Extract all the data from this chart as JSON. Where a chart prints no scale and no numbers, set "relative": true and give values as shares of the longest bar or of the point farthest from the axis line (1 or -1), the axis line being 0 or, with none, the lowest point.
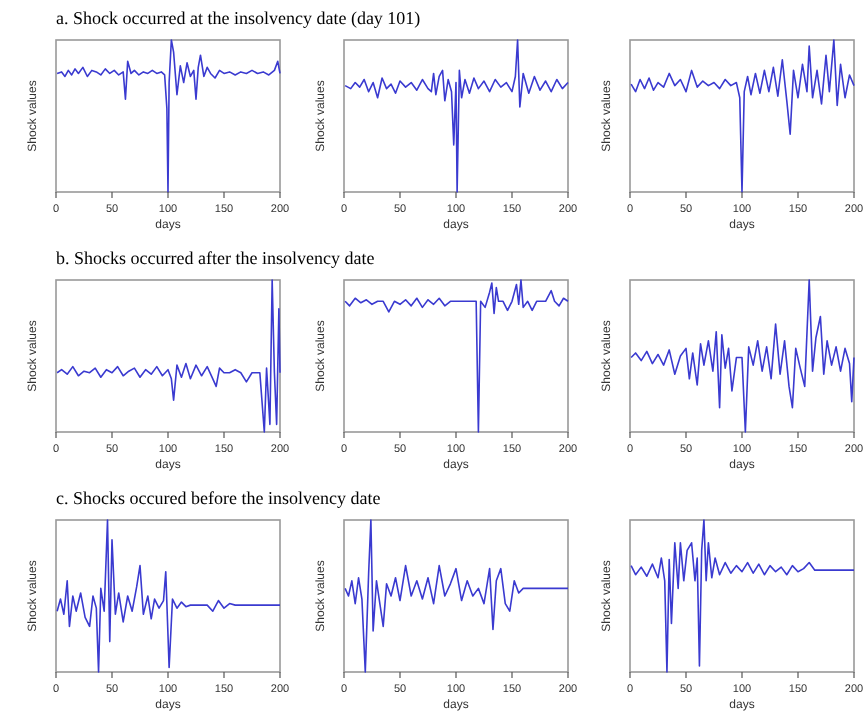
{
  "chart_data": [
    {
      "type": "line",
      "title": "a. Shock occurred at the insolvency date (day 101)",
      "xlabel": "days",
      "ylabel": "Shock values",
      "color": "#3a3ad0",
      "relative": true,
      "xlim": [
        0,
        200
      ],
      "xticks": [
        0,
        50,
        100,
        150,
        200
      ],
      "x": [
        1,
        5,
        8,
        11,
        14,
        17,
        20,
        24,
        28,
        32,
        36,
        40,
        44,
        48,
        52,
        56,
        60,
        62,
        64,
        67,
        70,
        74,
        78,
        82,
        86,
        90,
        94,
        97,
        99,
        100,
        101,
        103,
        105,
        108,
        111,
        114,
        117,
        120,
        123,
        125,
        127,
        129,
        132,
        135,
        138,
        142,
        146,
        150,
        155,
        160,
        165,
        170,
        175,
        180,
        185,
        190,
        195,
        198,
        200
      ],
      "values": [
        0.78,
        0.79,
        0.76,
        0.8,
        0.77,
        0.81,
        0.78,
        0.82,
        0.76,
        0.8,
        0.79,
        0.77,
        0.81,
        0.78,
        0.8,
        0.77,
        0.79,
        0.61,
        0.86,
        0.78,
        0.8,
        0.77,
        0.79,
        0.78,
        0.8,
        0.78,
        0.79,
        0.77,
        0.55,
        0,
        0.72,
        1,
        0.92,
        0.64,
        0.83,
        0.72,
        0.85,
        0.76,
        0.8,
        0.61,
        0.82,
        0.9,
        0.76,
        0.82,
        0.78,
        0.75,
        0.8,
        0.78,
        0.79,
        0.77,
        0.79,
        0.78,
        0.8,
        0.78,
        0.79,
        0.77,
        0.8,
        0.86,
        0.78
      ]
    },
    {
      "type": "line",
      "xlabel": "days",
      "ylabel": "Shock values",
      "color": "#3a3ad0",
      "relative": true,
      "xlim": [
        0,
        200
      ],
      "xticks": [
        0,
        50,
        100,
        150,
        200
      ],
      "x": [
        1,
        6,
        10,
        14,
        18,
        22,
        26,
        30,
        34,
        38,
        42,
        46,
        50,
        55,
        60,
        65,
        70,
        75,
        78,
        80,
        82,
        85,
        88,
        90,
        93,
        96,
        98,
        100,
        101,
        103,
        105,
        108,
        112,
        116,
        120,
        125,
        130,
        135,
        140,
        145,
        150,
        153,
        155,
        157,
        160,
        165,
        170,
        175,
        180,
        185,
        190,
        195,
        200
      ],
      "values": [
        0.7,
        0.68,
        0.72,
        0.69,
        0.74,
        0.66,
        0.72,
        0.62,
        0.75,
        0.68,
        0.71,
        0.65,
        0.73,
        0.69,
        0.72,
        0.67,
        0.74,
        0.68,
        0.66,
        0.78,
        0.64,
        0.76,
        0.8,
        0.6,
        0.74,
        0.66,
        0.31,
        0.72,
        0,
        0.8,
        0.62,
        0.74,
        0.65,
        0.75,
        0.68,
        0.73,
        0.66,
        0.74,
        0.69,
        0.72,
        0.66,
        0.76,
        1,
        0.56,
        0.78,
        0.65,
        0.76,
        0.67,
        0.73,
        0.66,
        0.74,
        0.68,
        0.72
      ]
    },
    {
      "type": "line",
      "xlabel": "days",
      "ylabel": "Shock values",
      "color": "#3a3ad0",
      "relative": true,
      "xlim": [
        0,
        200
      ],
      "xticks": [
        0,
        50,
        100,
        150,
        200
      ],
      "x": [
        1,
        5,
        9,
        13,
        17,
        21,
        25,
        30,
        35,
        40,
        45,
        50,
        55,
        60,
        65,
        70,
        75,
        80,
        85,
        90,
        95,
        98,
        100,
        102,
        105,
        108,
        112,
        116,
        120,
        124,
        128,
        132,
        136,
        140,
        143,
        146,
        150,
        154,
        158,
        160,
        163,
        167,
        171,
        175,
        178,
        182,
        185,
        188,
        192,
        196,
        200
      ],
      "values": [
        0.71,
        0.66,
        0.74,
        0.68,
        0.75,
        0.67,
        0.72,
        0.69,
        0.78,
        0.7,
        0.74,
        0.66,
        0.8,
        0.69,
        0.73,
        0.7,
        0.72,
        0.68,
        0.74,
        0.7,
        0.72,
        0.62,
        0,
        0.66,
        0.76,
        0.64,
        0.78,
        0.65,
        0.8,
        0.66,
        0.82,
        0.63,
        0.87,
        0.6,
        0.38,
        0.8,
        0.62,
        0.84,
        0.66,
        0.96,
        0.62,
        0.8,
        0.58,
        0.9,
        0.66,
        1,
        0.57,
        0.84,
        0.62,
        0.77,
        0.7
      ]
    },
    {
      "type": "line",
      "title": "b. Shocks occurred after the insolvency date",
      "xlabel": "days",
      "ylabel": "Shock values",
      "color": "#3a3ad0",
      "relative": true,
      "xlim": [
        0,
        200
      ],
      "xticks": [
        0,
        50,
        100,
        150,
        200
      ],
      "x": [
        1,
        5,
        10,
        15,
        20,
        25,
        30,
        35,
        40,
        45,
        50,
        55,
        60,
        65,
        70,
        75,
        80,
        85,
        90,
        95,
        100,
        103,
        105,
        108,
        112,
        116,
        120,
        125,
        130,
        135,
        140,
        143,
        146,
        150,
        155,
        160,
        165,
        170,
        175,
        178,
        182,
        186,
        188,
        191,
        193,
        195,
        197,
        199,
        200
      ],
      "values": [
        0.39,
        0.41,
        0.38,
        0.43,
        0.37,
        0.4,
        0.39,
        0.42,
        0.36,
        0.41,
        0.39,
        0.43,
        0.37,
        0.4,
        0.42,
        0.36,
        0.41,
        0.38,
        0.43,
        0.37,
        0.41,
        0.35,
        0.21,
        0.44,
        0.36,
        0.45,
        0.35,
        0.44,
        0.37,
        0.43,
        0.35,
        0.3,
        0.42,
        0.39,
        0.39,
        0.41,
        0.39,
        0.33,
        0.39,
        0.39,
        0.39,
        0,
        0.42,
        0.05,
        1,
        0.39,
        0.05,
        0.81,
        0.39
      ]
    },
    {
      "type": "line",
      "xlabel": "days",
      "ylabel": "Shock values",
      "color": "#3a3ad0",
      "relative": true,
      "xlim": [
        0,
        200
      ],
      "xticks": [
        0,
        50,
        100,
        150,
        200
      ],
      "x": [
        1,
        5,
        10,
        15,
        20,
        25,
        30,
        35,
        40,
        45,
        50,
        55,
        60,
        65,
        70,
        75,
        80,
        85,
        90,
        95,
        100,
        105,
        110,
        115,
        118,
        120,
        122,
        126,
        130,
        132,
        134,
        136,
        138,
        142,
        146,
        150,
        154,
        156,
        158,
        160,
        164,
        168,
        172,
        176,
        180,
        185,
        188,
        192,
        196,
        200
      ],
      "values": [
        0.86,
        0.83,
        0.88,
        0.85,
        0.87,
        0.84,
        0.86,
        0.86,
        0.79,
        0.86,
        0.84,
        0.87,
        0.83,
        0.88,
        0.82,
        0.87,
        0.84,
        0.88,
        0.83,
        0.86,
        0.86,
        0.86,
        0.86,
        0.86,
        0.86,
        0,
        0.86,
        0.82,
        0.92,
        0.98,
        0.78,
        0.95,
        0.86,
        0.86,
        0.8,
        0.86,
        0.97,
        0.84,
        1,
        0.82,
        0.86,
        0.8,
        0.86,
        0.86,
        0.86,
        0.93,
        0.86,
        0.83,
        0.88,
        0.86
      ]
    },
    {
      "type": "line",
      "xlabel": "days",
      "ylabel": "Shock values",
      "color": "#3a3ad0",
      "relative": true,
      "xlim": [
        0,
        200
      ],
      "xticks": [
        0,
        50,
        100,
        150,
        200
      ],
      "x": [
        1,
        5,
        10,
        15,
        20,
        25,
        30,
        35,
        40,
        45,
        50,
        53,
        56,
        60,
        63,
        66,
        70,
        74,
        77,
        80,
        82,
        85,
        88,
        91,
        95,
        100,
        103,
        106,
        110,
        114,
        118,
        122,
        126,
        130,
        134,
        138,
        142,
        145,
        148,
        152,
        156,
        160,
        163,
        166,
        170,
        173,
        176,
        180,
        184,
        188,
        192,
        196,
        198,
        200
      ],
      "values": [
        0.49,
        0.52,
        0.47,
        0.53,
        0.45,
        0.51,
        0.44,
        0.54,
        0.38,
        0.5,
        0.55,
        0.35,
        0.52,
        0.31,
        0.58,
        0.44,
        0.6,
        0.4,
        0.66,
        0.16,
        0.64,
        0.42,
        0.55,
        0.27,
        0.49,
        0.49,
        0,
        0.56,
        0.44,
        0.6,
        0.4,
        0.56,
        0.35,
        0.71,
        0.38,
        0.6,
        0.3,
        0.16,
        0.55,
        0.42,
        0.3,
        1,
        0.4,
        0.62,
        0.76,
        0.38,
        0.6,
        0.44,
        0.56,
        0.4,
        0.55,
        0.45,
        0.2,
        0.49
      ]
    },
    {
      "type": "line",
      "title": "c. Shocks occured before the insolvency date",
      "xlabel": "days",
      "ylabel": "Shock values",
      "color": "#3a3ad0",
      "relative": true,
      "xlim": [
        0,
        200
      ],
      "xticks": [
        0,
        50,
        100,
        150,
        200
      ],
      "x": [
        1,
        4,
        7,
        10,
        12,
        15,
        18,
        22,
        26,
        30,
        33,
        36,
        38,
        40,
        43,
        46,
        48,
        50,
        53,
        56,
        60,
        64,
        68,
        72,
        75,
        78,
        82,
        85,
        88,
        92,
        96,
        98,
        101,
        104,
        108,
        112,
        116,
        120,
        125,
        130,
        135,
        140,
        145,
        150,
        155,
        160,
        170,
        180,
        190,
        200
      ],
      "values": [
        0.4,
        0.48,
        0.38,
        0.6,
        0.3,
        0.5,
        0.4,
        0.52,
        0.36,
        0.3,
        0.5,
        0.42,
        0,
        0.55,
        0.4,
        1,
        0.2,
        0.87,
        0.38,
        0.52,
        0.33,
        0.5,
        0.4,
        0.56,
        0.7,
        0.38,
        0.5,
        0.35,
        0.48,
        0.42,
        0.47,
        0.66,
        0.03,
        0.48,
        0.42,
        0.46,
        0.43,
        0.44,
        0.44,
        0.44,
        0.44,
        0.4,
        0.47,
        0.42,
        0.45,
        0.44,
        0.44,
        0.44,
        0.44,
        0.44
      ]
    },
    {
      "type": "line",
      "xlabel": "days",
      "ylabel": "Shock values",
      "color": "#3a3ad0",
      "relative": true,
      "xlim": [
        0,
        200
      ],
      "xticks": [
        0,
        50,
        100,
        150,
        200
      ],
      "x": [
        1,
        4,
        7,
        10,
        13,
        16,
        19,
        22,
        24,
        26,
        29,
        32,
        35,
        38,
        42,
        46,
        50,
        55,
        60,
        65,
        70,
        75,
        80,
        85,
        90,
        95,
        100,
        105,
        110,
        115,
        120,
        125,
        130,
        133,
        136,
        140,
        144,
        148,
        152,
        156,
        160,
        170,
        180,
        190,
        200
      ],
      "values": [
        0.55,
        0.5,
        0.6,
        0.45,
        0.62,
        0.48,
        0,
        0.65,
        1,
        0.27,
        0.6,
        0.45,
        0.3,
        0.58,
        0.5,
        0.62,
        0.47,
        0.7,
        0.5,
        0.6,
        0.48,
        0.62,
        0.45,
        0.7,
        0.5,
        0.58,
        0.68,
        0.47,
        0.6,
        0.5,
        0.55,
        0.45,
        0.68,
        0.28,
        0.6,
        0.68,
        0.45,
        0.4,
        0.6,
        0.52,
        0.55,
        0.55,
        0.55,
        0.55,
        0.55
      ]
    },
    {
      "type": "line",
      "xlabel": "days",
      "ylabel": "Shock values",
      "color": "#3a3ad0",
      "relative": true,
      "xlim": [
        0,
        200
      ],
      "xticks": [
        0,
        50,
        100,
        150,
        200
      ],
      "x": [
        1,
        5,
        10,
        15,
        20,
        25,
        28,
        31,
        33,
        35,
        37,
        40,
        43,
        45,
        48,
        51,
        55,
        58,
        60,
        62,
        64,
        66,
        68,
        70,
        73,
        76,
        80,
        85,
        90,
        95,
        100,
        105,
        110,
        115,
        120,
        125,
        130,
        135,
        140,
        145,
        150,
        155,
        160,
        165,
        180,
        200
      ],
      "values": [
        0.7,
        0.64,
        0.69,
        0.63,
        0.71,
        0.62,
        0.75,
        0.6,
        0,
        0.74,
        0.32,
        0.85,
        0.55,
        0.85,
        0.6,
        0.8,
        0.85,
        0.6,
        0.75,
        0.04,
        0.8,
        1,
        0.6,
        0.85,
        0.62,
        0.75,
        0.64,
        0.72,
        0.65,
        0.7,
        0.66,
        0.72,
        0.65,
        0.71,
        0.64,
        0.7,
        0.66,
        0.69,
        0.64,
        0.7,
        0.66,
        0.68,
        0.72,
        0.67,
        0.67,
        0.67
      ]
    }
  ]
}
